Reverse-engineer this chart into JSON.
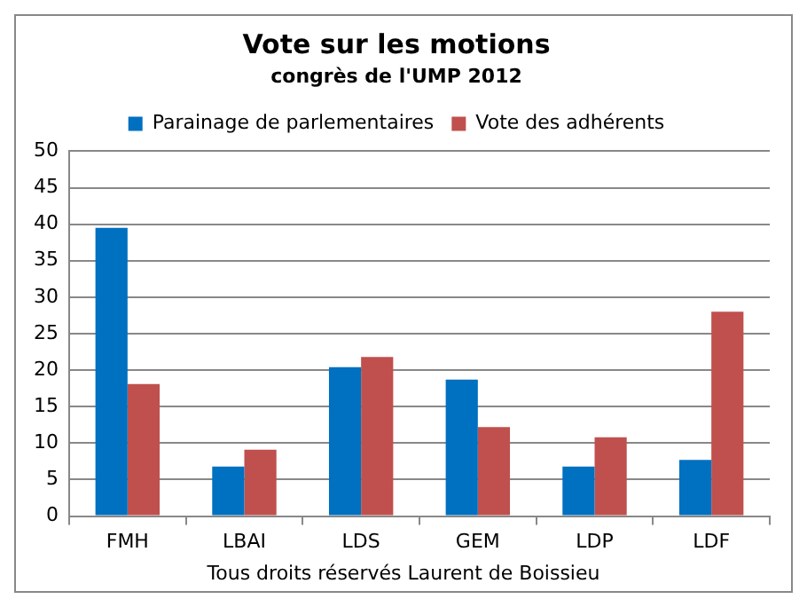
{
  "chart_data": {
    "type": "bar",
    "title": "Vote sur les motions",
    "subtitle": "congrès de l'UMP 2012",
    "categories": [
      "FMH",
      "LBAI",
      "LDS",
      "GEM",
      "LDP",
      "LDF"
    ],
    "series": [
      {
        "name": "Parainage de parlementaires",
        "color": "#0070c0",
        "values": [
          39.5,
          6.8,
          20.4,
          18.7,
          6.8,
          7.7
        ]
      },
      {
        "name": "Vote des adhérents",
        "color": "#c0504d",
        "values": [
          18.1,
          9.1,
          21.8,
          12.2,
          10.8,
          28.0
        ]
      }
    ],
    "ylim": [
      0,
      50
    ],
    "yticks": [
      0,
      5,
      10,
      15,
      20,
      25,
      30,
      35,
      40,
      45,
      50
    ],
    "grid": "y",
    "legend": "top",
    "annotations": [
      "Tous droits réservés Laurent de Boissieu"
    ]
  }
}
